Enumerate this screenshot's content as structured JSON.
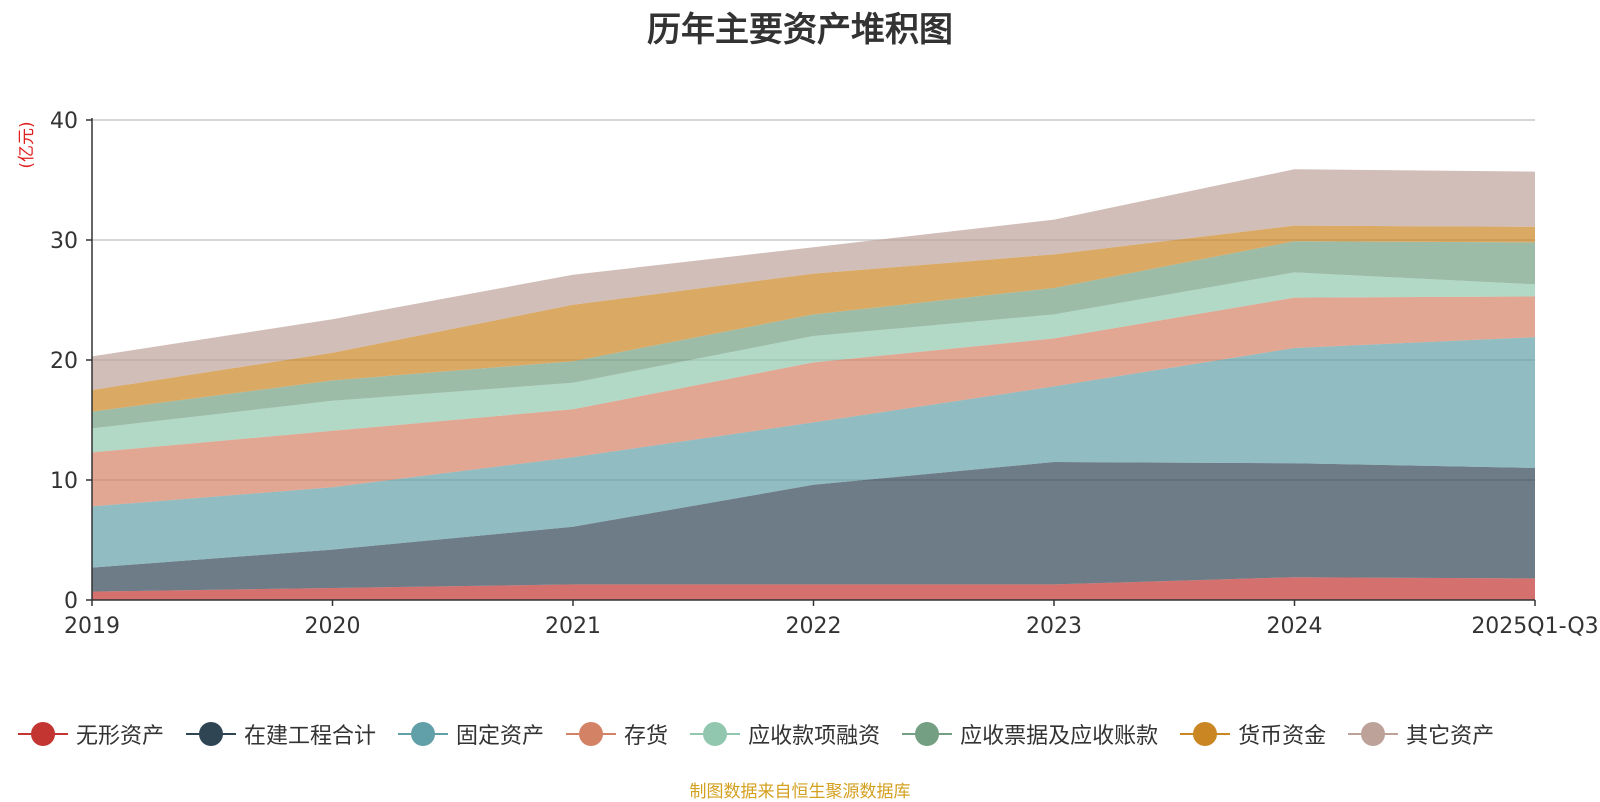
{
  "chart_data": {
    "type": "area",
    "stacked": true,
    "title": "历年主要资产堆积图",
    "ylabel": "(亿元)",
    "xlabel": "",
    "ylim": [
      0,
      40
    ],
    "yticks": [
      0,
      10,
      20,
      30,
      40
    ],
    "categories": [
      "2019",
      "2020",
      "2021",
      "2022",
      "2023",
      "2024",
      "2025Q1-Q3"
    ],
    "grid": true,
    "legend_position": "bottom",
    "series": [
      {
        "name": "无形资产",
        "color": "#c23531",
        "values": [
          0.7,
          1.0,
          1.3,
          1.3,
          1.3,
          1.9,
          1.8
        ]
      },
      {
        "name": "在建工程合计",
        "color": "#2f4554",
        "values": [
          2.0,
          3.2,
          4.8,
          8.3,
          10.2,
          9.5,
          9.2
        ]
      },
      {
        "name": "固定资产",
        "color": "#61a0a8",
        "values": [
          5.1,
          5.2,
          5.8,
          5.2,
          6.3,
          9.6,
          10.9
        ]
      },
      {
        "name": "存货",
        "color": "#d48265",
        "values": [
          4.5,
          4.7,
          4.0,
          5.0,
          4.0,
          4.2,
          3.4
        ]
      },
      {
        "name": "应收款项融资",
        "color": "#91c7ae",
        "values": [
          2.0,
          2.5,
          2.2,
          2.2,
          2.0,
          2.1,
          1.0
        ]
      },
      {
        "name": "应收票据及应收账款",
        "color": "#749f83",
        "values": [
          1.4,
          1.7,
          1.8,
          1.8,
          2.2,
          2.6,
          3.5
        ]
      },
      {
        "name": "货币资金",
        "color": "#ca8622",
        "values": [
          1.8,
          2.3,
          4.7,
          3.4,
          2.8,
          1.3,
          1.3
        ]
      },
      {
        "name": "其它资产",
        "color": "#bda29a",
        "values": [
          2.8,
          2.8,
          2.5,
          2.2,
          2.9,
          4.7,
          4.6
        ]
      }
    ],
    "source_note": "制图数据来自恒生聚源数据库"
  }
}
